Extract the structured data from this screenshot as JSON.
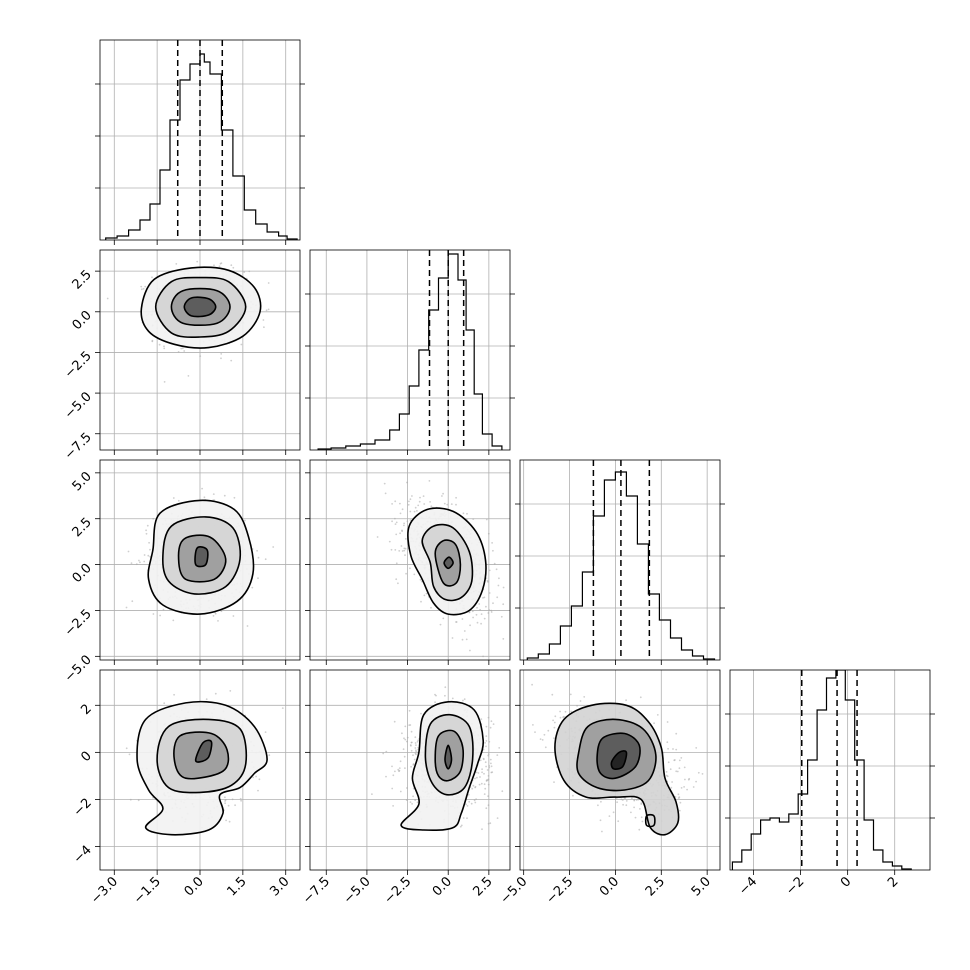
{
  "chart_data": {
    "type": "corner",
    "title": "",
    "n_params": 4,
    "params": [
      {
        "xlim": [
          -3.5,
          3.5
        ],
        "ticks": [
          -3.0,
          -1.5,
          0.0,
          1.5,
          3.0
        ],
        "tick_labels": [
          "−3.0",
          "−1.5",
          "0.0",
          "1.5",
          "3.0"
        ],
        "quantiles": [
          -0.78,
          0.0,
          0.78
        ],
        "hist": {
          "bin_edges": [
            -3.3,
            -2.9,
            -2.5,
            -2.1,
            -1.75,
            -1.4,
            -1.05,
            -0.7,
            -0.35,
            0.0,
            0.15,
            0.35,
            0.75,
            1.15,
            1.55,
            1.95,
            2.35,
            2.75,
            3.05,
            3.4
          ],
          "counts": [
            0.01,
            0.02,
            0.05,
            0.1,
            0.18,
            0.35,
            0.6,
            0.8,
            0.88,
            0.93,
            0.89,
            0.83,
            0.55,
            0.32,
            0.15,
            0.08,
            0.04,
            0.02,
            0.005
          ]
        }
      },
      {
        "xlim": [
          -8.5,
          3.8
        ],
        "ticks": [
          -7.5,
          -5.0,
          -2.5,
          0.0,
          2.5
        ],
        "tick_labels": [
          "−7.5",
          "−5.0",
          "−2.5",
          "0.0",
          "2.5"
        ],
        "quantiles": [
          -1.15,
          0.0,
          0.95
        ],
        "hist": {
          "bin_edges": [
            -8.0,
            -7.2,
            -6.3,
            -5.4,
            -4.5,
            -3.6,
            -3.0,
            -2.4,
            -1.8,
            -1.2,
            -0.6,
            0.0,
            0.6,
            1.1,
            1.6,
            2.1,
            2.7,
            3.3
          ],
          "counts": [
            0.005,
            0.01,
            0.02,
            0.03,
            0.05,
            0.1,
            0.18,
            0.32,
            0.5,
            0.7,
            0.86,
            0.98,
            0.85,
            0.6,
            0.28,
            0.08,
            0.02
          ]
        }
      },
      {
        "xlim": [
          -5.2,
          5.7
        ],
        "ticks": [
          -5.0,
          -2.5,
          0.0,
          2.5,
          5.0
        ],
        "tick_labels": [
          "−5.0",
          "−2.5",
          "0.0",
          "2.5",
          "5.0"
        ],
        "quantiles": [
          -1.2,
          0.3,
          1.85
        ],
        "hist": {
          "bin_edges": [
            -4.8,
            -4.2,
            -3.6,
            -3.0,
            -2.4,
            -1.8,
            -1.2,
            -0.6,
            0.0,
            0.6,
            1.2,
            1.8,
            2.4,
            3.0,
            3.6,
            4.2,
            4.8,
            5.4
          ],
          "counts": [
            0.01,
            0.03,
            0.08,
            0.17,
            0.27,
            0.44,
            0.72,
            0.9,
            0.94,
            0.82,
            0.58,
            0.33,
            0.2,
            0.11,
            0.05,
            0.02,
            0.005
          ]
        }
      },
      {
        "xlim": [
          -5.0,
          3.5
        ],
        "ticks": [
          -4,
          -2,
          0,
          2
        ],
        "tick_labels": [
          "−4",
          "−2",
          "0",
          "2"
        ],
        "quantiles": [
          -1.95,
          -0.45,
          0.4
        ],
        "hist": {
          "bin_edges": [
            -4.9,
            -4.5,
            -4.1,
            -3.7,
            -3.3,
            -2.9,
            -2.5,
            -2.1,
            -1.7,
            -1.3,
            -0.9,
            -0.5,
            -0.1,
            0.3,
            0.7,
            1.1,
            1.5,
            1.9,
            2.3,
            2.7
          ],
          "counts": [
            0.04,
            0.1,
            0.18,
            0.25,
            0.26,
            0.24,
            0.28,
            0.38,
            0.55,
            0.8,
            0.96,
            1.0,
            0.85,
            0.55,
            0.25,
            0.1,
            0.04,
            0.02,
            0.005
          ]
        }
      }
    ],
    "pairs": [
      {
        "row": 1,
        "col": 0,
        "center": [
          0.0,
          0.3
        ],
        "scale": [
          0.8,
          1.1
        ],
        "rho": 0.0,
        "contours": [
          [
            [
              -0.55,
              0.3
            ],
            [
              -0.3,
              0.85
            ],
            [
              0.3,
              0.8
            ],
            [
              0.55,
              0.3
            ],
            [
              0.3,
              -0.2
            ],
            [
              -0.3,
              -0.25
            ]
          ],
          [
            [
              -1.0,
              0.3
            ],
            [
              -0.6,
              1.3
            ],
            [
              0.6,
              1.3
            ],
            [
              1.05,
              0.3
            ],
            [
              0.6,
              -0.7
            ],
            [
              -0.6,
              -0.7
            ]
          ],
          [
            [
              -1.55,
              0.3
            ],
            [
              -1.0,
              1.85
            ],
            [
              0.0,
              2.1
            ],
            [
              1.0,
              1.85
            ],
            [
              1.6,
              0.3
            ],
            [
              1.0,
              -1.2
            ],
            [
              0.0,
              -1.55
            ],
            [
              -1.0,
              -1.3
            ]
          ],
          [
            [
              -2.05,
              0.2
            ],
            [
              -1.6,
              2.0
            ],
            [
              -0.3,
              2.7
            ],
            [
              1.0,
              2.55
            ],
            [
              1.9,
              1.5
            ],
            [
              2.1,
              0.0
            ],
            [
              1.5,
              -1.5
            ],
            [
              0.3,
              -2.2
            ],
            [
              -0.9,
              -2.0
            ],
            [
              -1.8,
              -1.2
            ]
          ]
        ]
      },
      {
        "row": 2,
        "col": 0,
        "center": [
          0.0,
          0.4
        ],
        "scale": [
          0.8,
          1.3
        ],
        "rho": 0.0,
        "contours": [
          [
            [
              -0.15,
              0.0
            ],
            [
              -0.1,
              0.9
            ],
            [
              0.25,
              0.8
            ],
            [
              0.2,
              0.0
            ]
          ],
          [
            [
              -0.75,
              0.3
            ],
            [
              -0.55,
              1.4
            ],
            [
              0.35,
              1.5
            ],
            [
              0.9,
              0.3
            ],
            [
              0.5,
              -0.8
            ],
            [
              -0.5,
              -0.8
            ]
          ],
          [
            [
              -1.3,
              0.5
            ],
            [
              -1.0,
              2.1
            ],
            [
              0.2,
              2.6
            ],
            [
              1.15,
              2.0
            ],
            [
              1.4,
              0.3
            ],
            [
              0.9,
              -1.2
            ],
            [
              -0.2,
              -1.6
            ],
            [
              -1.1,
              -0.9
            ]
          ],
          [
            [
              -1.65,
              0.8
            ],
            [
              -1.4,
              2.8
            ],
            [
              0.0,
              3.5
            ],
            [
              1.2,
              3.0
            ],
            [
              1.7,
              1.5
            ],
            [
              1.85,
              -0.5
            ],
            [
              1.3,
              -2.0
            ],
            [
              0.0,
              -2.7
            ],
            [
              -1.3,
              -2.2
            ],
            [
              -1.8,
              -0.8
            ]
          ]
        ]
      },
      {
        "row": 3,
        "col": 0,
        "center": [
          0.0,
          -0.3
        ],
        "scale": [
          0.8,
          1.0
        ],
        "rho": 0.0,
        "contours": [
          [
            [
              -0.15,
              -0.3
            ],
            [
              0.1,
              0.4
            ],
            [
              0.4,
              0.45
            ],
            [
              0.3,
              -0.2
            ],
            [
              0.0,
              -0.4
            ]
          ],
          [
            [
              -0.9,
              -0.3
            ],
            [
              -0.7,
              0.7
            ],
            [
              0.4,
              0.8
            ],
            [
              0.95,
              0.1
            ],
            [
              0.8,
              -0.8
            ],
            [
              -0.5,
              -1.1
            ]
          ],
          [
            [
              -1.5,
              -0.3
            ],
            [
              -1.1,
              1.1
            ],
            [
              0.3,
              1.4
            ],
            [
              1.4,
              1.0
            ],
            [
              1.6,
              -0.5
            ],
            [
              1.1,
              -1.4
            ],
            [
              0.0,
              -1.7
            ],
            [
              -1.1,
              -1.5
            ]
          ],
          [
            [
              -2.2,
              -0.3
            ],
            [
              -1.9,
              1.4
            ],
            [
              -0.5,
              2.1
            ],
            [
              0.9,
              2.0
            ],
            [
              1.9,
              1.1
            ],
            [
              2.35,
              -0.3
            ],
            [
              1.9,
              -0.9
            ],
            [
              1.4,
              -1.5
            ],
            [
              0.7,
              -1.8
            ],
            [
              0.8,
              -2.6
            ],
            [
              0.3,
              -3.3
            ],
            [
              -1.0,
              -3.5
            ],
            [
              -1.9,
              -3.2
            ],
            [
              -1.3,
              -2.4
            ],
            [
              -1.8,
              -1.6
            ]
          ]
        ]
      },
      {
        "row": 2,
        "col": 1,
        "center": [
          0.0,
          0.3
        ],
        "scale": [
          1.3,
          1.4
        ],
        "rho": -0.5,
        "contours": [
          [
            [
              -0.25,
              0.1
            ],
            [
              0.05,
              0.4
            ],
            [
              0.3,
              0.1
            ],
            [
              0.0,
              -0.2
            ]
          ],
          [
            [
              -0.8,
              0.6
            ],
            [
              -0.3,
              1.3
            ],
            [
              0.45,
              1.1
            ],
            [
              0.75,
              0.0
            ],
            [
              0.5,
              -1.0
            ],
            [
              -0.3,
              -1.0
            ]
          ],
          [
            [
              -1.6,
              1.3
            ],
            [
              -0.9,
              2.1
            ],
            [
              0.3,
              2.0
            ],
            [
              1.3,
              0.7
            ],
            [
              1.45,
              -0.9
            ],
            [
              0.8,
              -1.8
            ],
            [
              -0.2,
              -1.9
            ],
            [
              -0.9,
              -1.2
            ],
            [
              -1.1,
              0.1
            ]
          ],
          [
            [
              -2.4,
              2.1
            ],
            [
              -1.3,
              3.0
            ],
            [
              0.3,
              2.9
            ],
            [
              1.7,
              1.8
            ],
            [
              2.3,
              0.2
            ],
            [
              2.1,
              -1.4
            ],
            [
              1.3,
              -2.5
            ],
            [
              0.0,
              -2.7
            ],
            [
              -0.9,
              -2.1
            ],
            [
              -1.6,
              -0.8
            ],
            [
              -2.3,
              0.5
            ]
          ]
        ]
      },
      {
        "row": 3,
        "col": 1,
        "center": [
          0.0,
          -0.3
        ],
        "scale": [
          1.3,
          1.0
        ],
        "rho": 0.0,
        "contours": [
          [
            [
              -0.2,
              -0.3
            ],
            [
              0.0,
              0.3
            ],
            [
              0.2,
              -0.3
            ],
            [
              0.0,
              -0.7
            ]
          ],
          [
            [
              -0.8,
              -0.3
            ],
            [
              -0.6,
              0.7
            ],
            [
              0.35,
              0.9
            ],
            [
              0.9,
              0.2
            ],
            [
              0.75,
              -0.8
            ],
            [
              0.0,
              -1.2
            ],
            [
              -0.6,
              -1.0
            ]
          ],
          [
            [
              -1.4,
              -0.2
            ],
            [
              -1.1,
              1.2
            ],
            [
              0.1,
              1.6
            ],
            [
              1.3,
              1.1
            ],
            [
              1.5,
              -0.3
            ],
            [
              1.0,
              -1.5
            ],
            [
              -0.1,
              -1.8
            ],
            [
              -1.0,
              -1.3
            ]
          ],
          [
            [
              -1.8,
              0.0
            ],
            [
              -1.5,
              1.6
            ],
            [
              0.0,
              2.15
            ],
            [
              1.6,
              1.8
            ],
            [
              2.15,
              0.5
            ],
            [
              1.8,
              -0.5
            ],
            [
              1.3,
              -1.5
            ],
            [
              0.8,
              -2.6
            ],
            [
              0.3,
              -3.2
            ],
            [
              -1.5,
              -3.3
            ],
            [
              -2.9,
              -3.1
            ],
            [
              -1.8,
              -2.2
            ],
            [
              -2.2,
              -1.1
            ]
          ]
        ]
      },
      {
        "row": 3,
        "col": 2,
        "center": [
          0.3,
          -0.4
        ],
        "scale": [
          1.5,
          1.0
        ],
        "rho": -0.4,
        "contours": [
          [
            [
              -0.2,
              -0.4
            ],
            [
              0.2,
              0.0
            ],
            [
              0.6,
              0.0
            ],
            [
              0.4,
              -0.6
            ],
            [
              -0.1,
              -0.7
            ]
          ],
          [
            [
              -1.0,
              -0.2
            ],
            [
              -0.7,
              0.6
            ],
            [
              0.5,
              0.8
            ],
            [
              1.3,
              0.3
            ],
            [
              1.1,
              -0.6
            ],
            [
              0.0,
              -1.1
            ],
            [
              -0.8,
              -0.9
            ]
          ],
          [
            [
              -2.0,
              0.0
            ],
            [
              -1.5,
              1.1
            ],
            [
              0.0,
              1.4
            ],
            [
              1.5,
              1.0
            ],
            [
              2.2,
              -0.1
            ],
            [
              1.8,
              -1.2
            ],
            [
              0.5,
              -1.6
            ],
            [
              -1.0,
              -1.5
            ],
            [
              -2.0,
              -0.9
            ]
          ],
          [
            [
              -3.3,
              0.2
            ],
            [
              -2.8,
              1.4
            ],
            [
              -1.3,
              2.0
            ],
            [
              0.6,
              2.0
            ],
            [
              1.8,
              1.3
            ],
            [
              2.5,
              0.2
            ],
            [
              2.7,
              -1.1
            ],
            [
              3.3,
              -2.1
            ],
            [
              3.4,
              -3.0
            ],
            [
              2.7,
              -3.5
            ],
            [
              1.9,
              -3.2
            ],
            [
              1.4,
              -2.0
            ],
            [
              0.0,
              -1.9
            ],
            [
              -1.6,
              -1.9
            ],
            [
              -2.8,
              -1.2
            ]
          ],
          [
            [
              1.7,
              -2.7
            ],
            [
              1.7,
              -3.1
            ],
            [
              2.1,
              -3.1
            ],
            [
              2.1,
              -2.7
            ]
          ]
        ]
      }
    ]
  }
}
